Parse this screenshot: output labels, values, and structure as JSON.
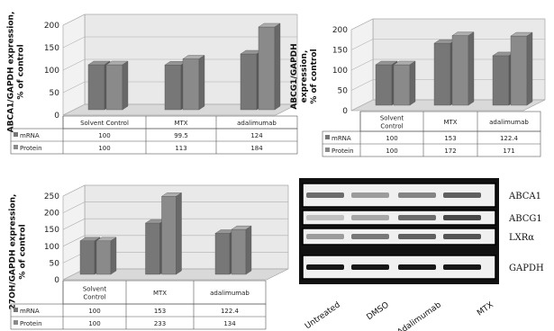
{
  "colors": {
    "mrna": "#777777",
    "protein": "#8a8a8a",
    "wall": "#e9e9e9",
    "floor": "#d9d9d9"
  },
  "chart_data": [
    {
      "type": "bar",
      "ylabel": "ABCA1/GAPDH expression,\n% of control",
      "categories": [
        "Solvent Control",
        "MTX",
        "adalimumab"
      ],
      "ylim": [
        0,
        200
      ],
      "yticks": [
        "0",
        "50",
        "100",
        "150",
        "200"
      ],
      "series": [
        {
          "name": "mRNA",
          "values": [
            100,
            99.5,
            124
          ],
          "labels": [
            "100",
            "99.5",
            "124"
          ]
        },
        {
          "name": "Protein",
          "values": [
            100,
            113,
            184
          ],
          "labels": [
            "100",
            "113",
            "184"
          ]
        }
      ]
    },
    {
      "type": "bar",
      "ylabel": "ABCG1/GAPDH\nexpression,\n% of control",
      "categories": [
        "Solvent\nControl",
        "MTX",
        "adalimumab"
      ],
      "ylim": [
        0,
        200
      ],
      "yticks": [
        "0",
        "50",
        "100",
        "150",
        "200"
      ],
      "series": [
        {
          "name": "mRNA",
          "values": [
            100,
            153,
            122.4
          ],
          "labels": [
            "100",
            "153",
            "122.4"
          ]
        },
        {
          "name": "Protein",
          "values": [
            100,
            172,
            171
          ],
          "labels": [
            "100",
            "172",
            "171"
          ]
        }
      ]
    },
    {
      "type": "bar",
      "ylabel": "27OH/GAPDH expression,\n% of control",
      "categories": [
        "Solvent\nControl",
        "MTX",
        "adalimumab"
      ],
      "ylim": [
        0,
        250
      ],
      "yticks": [
        "0",
        "50",
        "100",
        "150",
        "200",
        "250"
      ],
      "series": [
        {
          "name": "mRNA",
          "values": [
            100,
            153,
            122.4
          ],
          "labels": [
            "100",
            "153",
            "122.4"
          ]
        },
        {
          "name": "Protein",
          "values": [
            100,
            233,
            134
          ],
          "labels": [
            "100",
            "233",
            "134"
          ]
        }
      ]
    }
  ],
  "blot": {
    "bands": [
      "ABCA1",
      "ABCG1",
      "LXRα",
      "GAPDH"
    ],
    "lanes": [
      "Untreated",
      "DMSO",
      "Adalimumab",
      "MTX"
    ]
  }
}
